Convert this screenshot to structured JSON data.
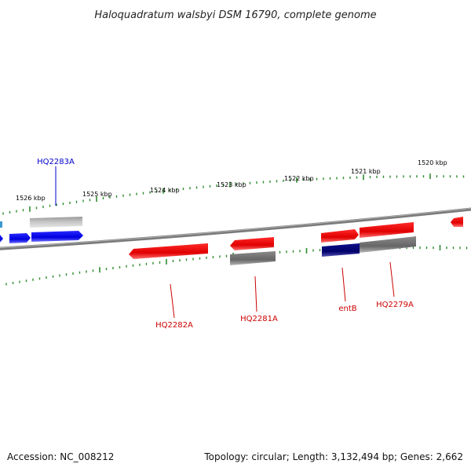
{
  "title": "Haloquadratum walsbyi DSM 16790, complete genome",
  "accession_text": "Accession: NC_008212",
  "topology_text": "Topology: circular; Length: 3,132,494 bp; Genes: 2,662",
  "colors": {
    "backbone": "#8a8a8a",
    "tick": "#2e8b2e",
    "forward_gene": "#e00000",
    "blue_gene": "#0000ee",
    "navy_gene": "#00007a",
    "grey_gene": "#777777",
    "lightgrey_gene": "#bdbdbd",
    "label_red": "#cc0000",
    "label_blue": "#0000cc"
  },
  "ruler_labels": [
    "1526 kbp",
    "1525 kbp",
    "1524 kbp",
    "1523 kbp",
    "1522 kbp",
    "1521 kbp",
    "1520 kbp"
  ],
  "gene_labels": [
    {
      "text": "HQ2283A",
      "color": "blue"
    },
    {
      "text": "HQ2282A",
      "color": "red"
    },
    {
      "text": "HQ2281A",
      "color": "red"
    },
    {
      "text": "entB",
      "color": "red"
    },
    {
      "text": "HQ2279A",
      "color": "red"
    }
  ]
}
